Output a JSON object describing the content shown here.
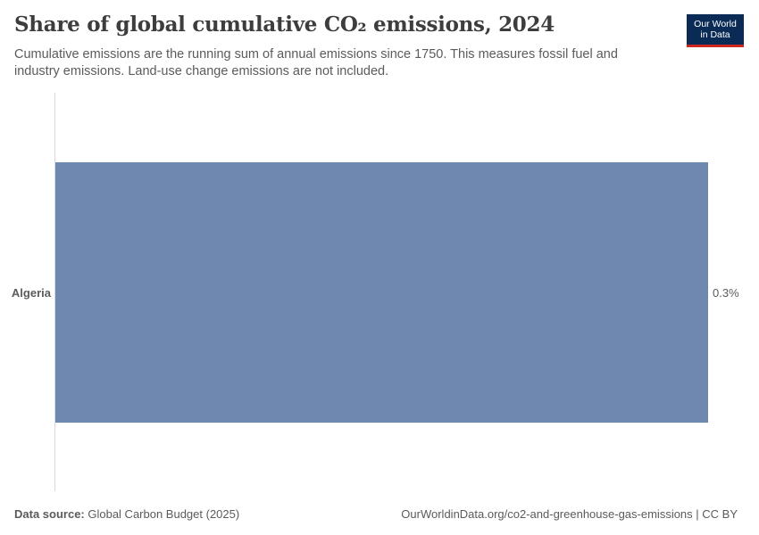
{
  "header": {
    "title": "Share of global cumulative CO₂ emissions, 2024",
    "subtitle": "Cumulative emissions are the running sum of annual emissions since 1750. This measures fossil fuel and industry emissions. Land-use change emissions are not included."
  },
  "logo": {
    "line1": "Our World",
    "line2": "in Data"
  },
  "footer": {
    "source_label": "Data source:",
    "source_value": " Global Carbon Budget (2025)",
    "url_license": "OurWorldinData.org/co2-and-greenhouse-gas-emissions | CC BY"
  },
  "chart_data": {
    "type": "bar",
    "orientation": "horizontal",
    "title": "Share of global cumulative CO₂ emissions, 2024",
    "categories": [
      "Algeria"
    ],
    "values": [
      0.3
    ],
    "value_labels": [
      "0.3%"
    ],
    "unit": "%",
    "xlim": [
      0,
      0.3
    ],
    "bar_color": "#6f88b0",
    "grid": false
  }
}
